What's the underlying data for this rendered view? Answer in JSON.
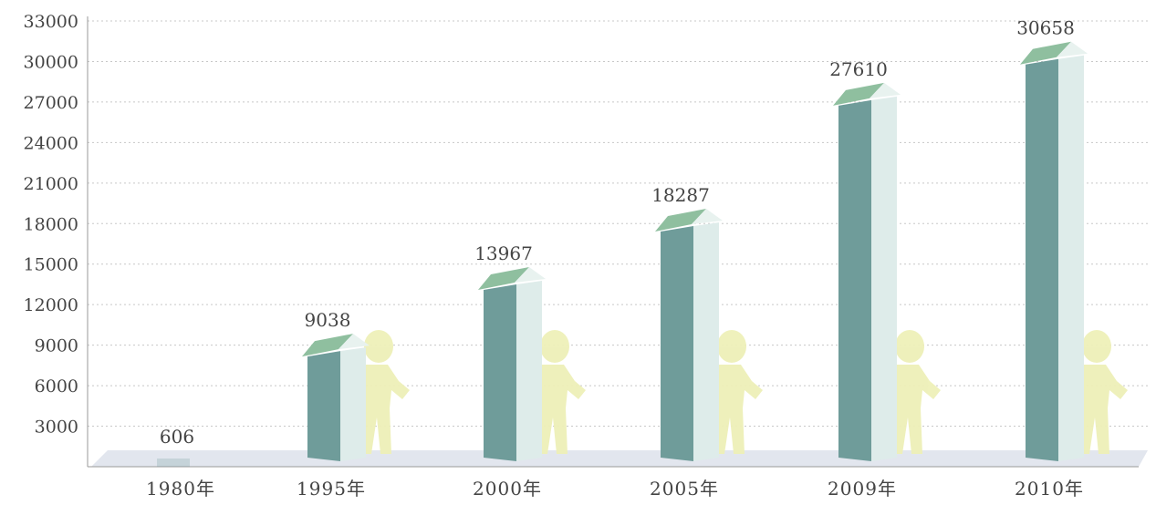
{
  "chart_data": {
    "type": "bar",
    "title": "",
    "xlabel": "",
    "ylabel": "",
    "categories": [
      "1980年",
      "1995年",
      "2000年",
      "2005年",
      "2009年",
      "2010年"
    ],
    "values": [
      606,
      9038,
      13967,
      18287,
      27610,
      30658
    ],
    "data_labels": [
      "606",
      "9038",
      "13967",
      "18287",
      "27610",
      "30658"
    ],
    "ylim": [
      0,
      33000
    ],
    "yticks": [
      3000,
      6000,
      9000,
      12000,
      15000,
      18000,
      21000,
      24000,
      27000,
      30000,
      33000
    ],
    "grid": true,
    "style": "3d-house-bars",
    "colors": {
      "front": "#6f9c9a",
      "side": "#deecea",
      "roof": "#8fbf9f",
      "floor": "#e2e6ee",
      "grid": "#c8c8c8",
      "figure": "#eef0b8"
    }
  }
}
